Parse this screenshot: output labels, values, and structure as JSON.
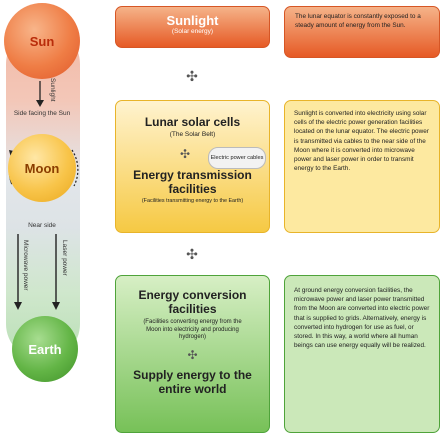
{
  "left": {
    "sun_label": "Sun",
    "moon_label": "Moon",
    "earth_label": "Earth",
    "sunlight_arrow_label": "Sunlight",
    "side_facing_sun": "Side facing the Sun",
    "near_side": "Near side",
    "microwave_power": "Microwave power",
    "laser_power": "Laser power"
  },
  "sunlight_box": {
    "title": "Sunlight",
    "subtitle": "(Solar energy)",
    "description": "The lunar equator is constantly exposed to a steady amount of energy from the Sun."
  },
  "moon_box": {
    "solar_cells_title": "Lunar solar cells",
    "solar_cells_subtitle": "(The Solar Belt)",
    "cables_label": "Electric power cables",
    "transmission_title": "Energy transmission facilities",
    "transmission_subtitle": "(Facilities transmitting energy to the Earth)",
    "description": "Sunlight is converted into electricity using solar cells of the electric power generation facilities located on the lunar equator. The electric power is transmitted via cables to the near side of the Moon where it is converted into microwave power and laser power in order to transmit energy to the Earth."
  },
  "earth_box": {
    "conversion_title": "Energy conversion facilities",
    "conversion_subtitle": "(Facilities converting energy from the Moon into electricity and producing hydrogen)",
    "supply_title": "Supply energy to the entire world",
    "description": "At ground energy conversion facilities, the microwave power and laser power transmitted from the Moon are converted into electric power that is supplied to grids. Alternatively, energy is converted into hydrogen for use as fuel, or stored. In this way, a world where all human beings can use energy equally will be realized."
  },
  "colors": {
    "sun_orange": "#e65a25",
    "moon_yellow": "#f6c943",
    "earth_green": "#63b546"
  }
}
